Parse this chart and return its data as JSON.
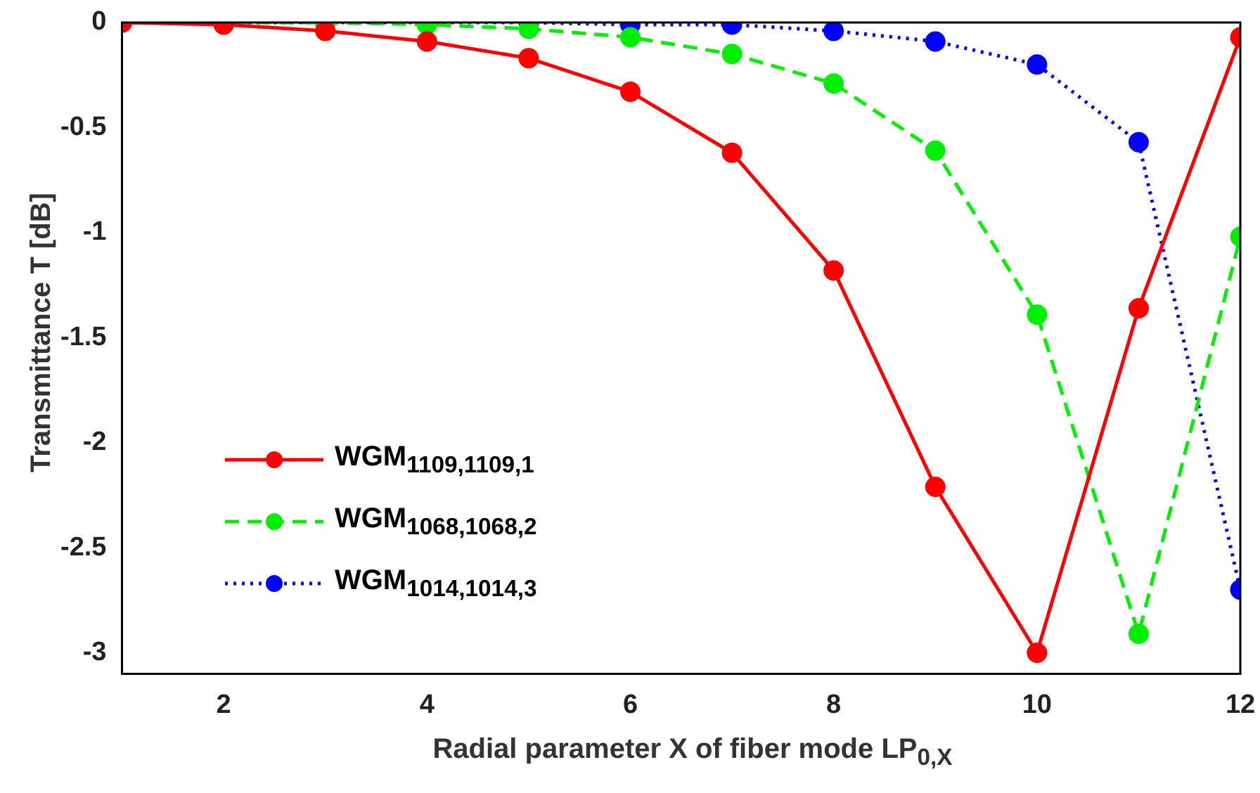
{
  "chart_data": {
    "type": "line",
    "xlabel": "Radial parameter X of fiber mode LP$_{0,X}$",
    "ylabel": "Transmittance T [dB]",
    "x": [
      1,
      2,
      3,
      4,
      5,
      6,
      7,
      8,
      9,
      10,
      11,
      12
    ],
    "series": [
      {
        "name": "WGM$_{1109,1109,1}$",
        "color": "#ff0000",
        "line_style": "solid",
        "values": [
          0,
          -0.01,
          -0.04,
          -0.09,
          -0.17,
          -0.33,
          -0.62,
          -1.18,
          -2.21,
          -3.0,
          -1.36,
          -0.07
        ]
      },
      {
        "name": "WGM$_{1068,1068,2}$",
        "color": "#00ee00",
        "line_style": "dashed",
        "values": [
          0,
          0,
          0,
          -0.01,
          -0.03,
          -0.07,
          -0.15,
          -0.29,
          -0.61,
          -1.39,
          -2.91,
          -1.02
        ]
      },
      {
        "name": "WGM$_{1014,1014,3}$",
        "color": "#0000ff",
        "line_style": "dotted",
        "values": [
          0,
          0,
          0,
          0,
          0,
          -0.01,
          -0.01,
          -0.04,
          -0.09,
          -0.2,
          -0.57,
          -2.7
        ]
      }
    ],
    "xlim": [
      1,
      12
    ],
    "xticks": [
      2,
      4,
      6,
      8,
      10,
      12
    ],
    "ylim": [
      -3.1,
      0
    ],
    "yticks": [
      0,
      -0.5,
      -1,
      -1.5,
      -2,
      -2.5,
      -3
    ],
    "grid": false,
    "legend": "bottom left",
    "marker": "circle"
  }
}
